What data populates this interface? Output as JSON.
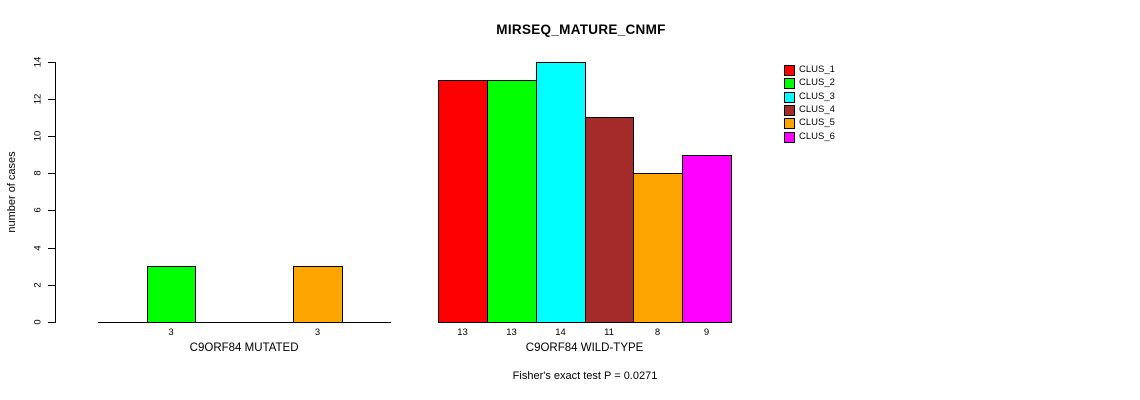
{
  "chart_data": {
    "type": "bar",
    "title": "MIRSEQ_MATURE_CNMF",
    "ylabel": "number of cases",
    "ylim": [
      0,
      14
    ],
    "ytick_step": 2,
    "yticks": [
      0,
      2,
      4,
      6,
      8,
      10,
      12,
      14
    ],
    "grid": false,
    "legend_position": "right",
    "legend": [
      {
        "label": "CLUS_1",
        "color": "#FF0000"
      },
      {
        "label": "CLUS_2",
        "color": "#00FF00"
      },
      {
        "label": "CLUS_3",
        "color": "#00FFFF"
      },
      {
        "label": "CLUS_4",
        "color": "#A52A2A"
      },
      {
        "label": "CLUS_5",
        "color": "#FFA500"
      },
      {
        "label": "CLUS_6",
        "color": "#FF00FF"
      }
    ],
    "groups": [
      {
        "label": "C9ORF84 MUTATED",
        "values": [
          0,
          3,
          0,
          0,
          3,
          0
        ]
      },
      {
        "label": "C9ORF84 WILD-TYPE",
        "values": [
          13,
          13,
          14,
          11,
          8,
          9
        ]
      }
    ],
    "footnote": "Fisher's exact test P = 0.0271"
  }
}
